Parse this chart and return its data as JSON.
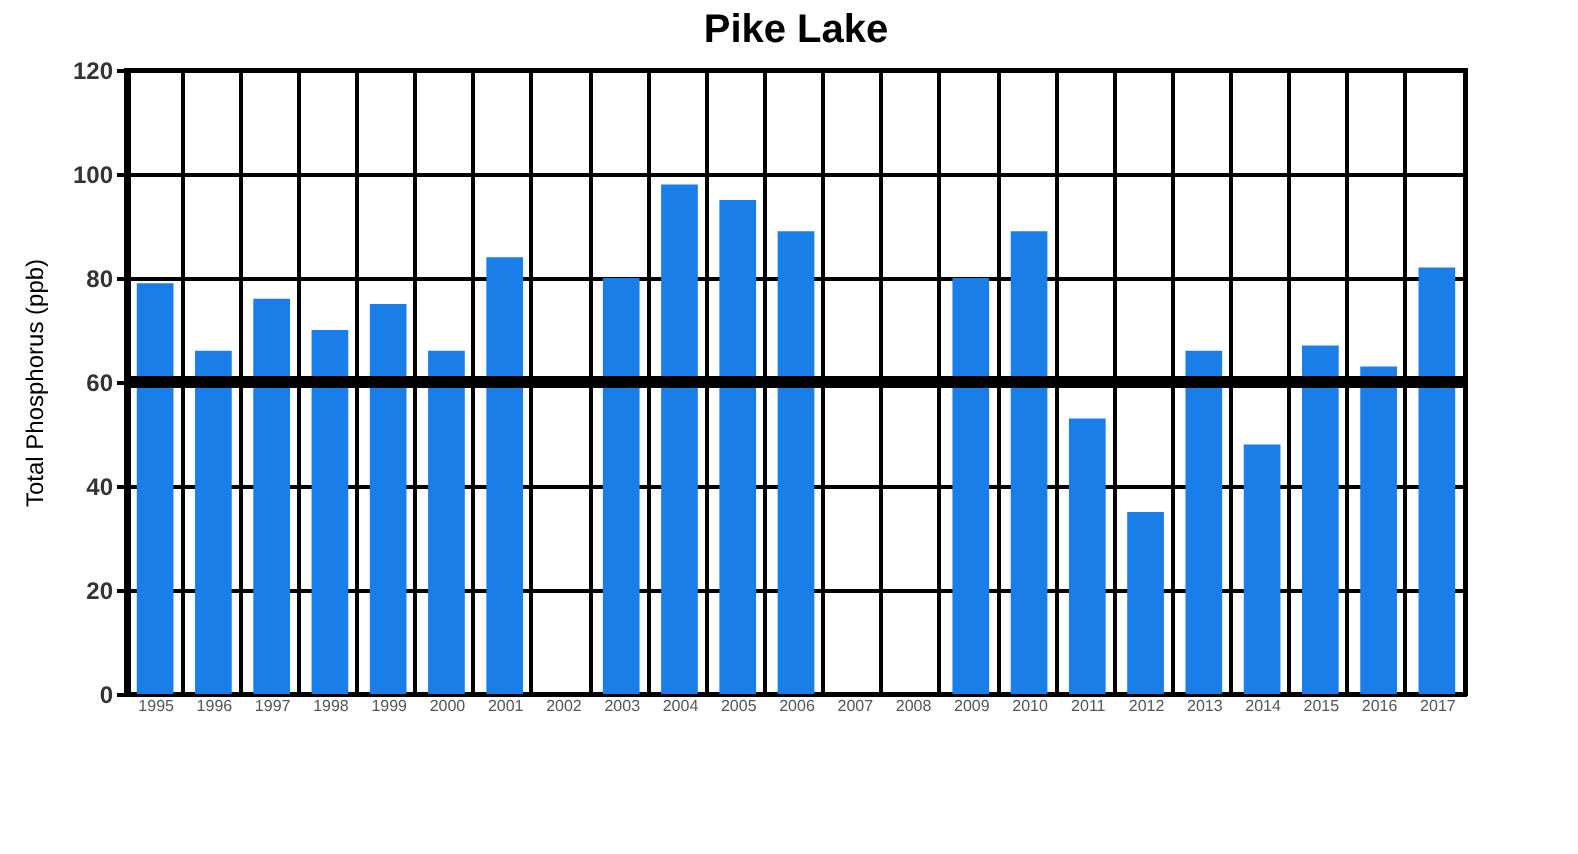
{
  "chart_data": {
    "type": "bar",
    "title": "Pike Lake",
    "ylabel": "Total Phosphorus (ppb)",
    "categories": [
      "1995",
      "1996",
      "1997",
      "1998",
      "1999",
      "2000",
      "2001",
      "2002",
      "2003",
      "2004",
      "2005",
      "2006",
      "2007",
      "2008",
      "2009",
      "2010",
      "2011",
      "2012",
      "2013",
      "2014",
      "2015",
      "2016",
      "2017"
    ],
    "values": [
      79,
      66,
      76,
      70,
      75,
      66,
      84,
      null,
      80,
      98,
      95,
      89,
      null,
      null,
      80,
      89,
      53,
      35,
      66,
      48,
      67,
      63,
      82
    ],
    "color": "#1a7ee8",
    "ylim": [
      0,
      120
    ],
    "yticks": [
      0,
      20,
      40,
      60,
      80,
      100,
      120
    ],
    "grid": true,
    "ref_lines": [
      {
        "axis": "y",
        "value": 60,
        "color": "#000000"
      }
    ]
  }
}
